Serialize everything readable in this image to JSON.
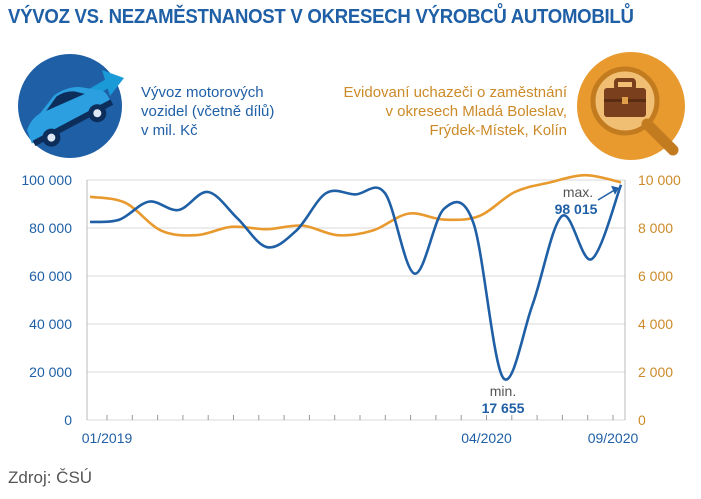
{
  "title": "VÝVOZ VS. NEZAMĚSTNANOST V OKRESECH VÝROBCŮ AUTOMOBILŮ",
  "legend": {
    "left_lines": [
      "Vývoz motorových",
      "vozidel (včetně dílů)",
      "v mil. Kč"
    ],
    "right_lines": [
      "Evidovaní uchazeči o zaměstnání",
      "v okresech Mladá Boleslav,",
      "Frýdek-Místek, Kolín"
    ],
    "left_icon": "car-with-arrow-icon",
    "right_icon": "briefcase-magnifier-icon"
  },
  "source": "Zdroj: ČSÚ",
  "colors": {
    "export": "#1f5fa6",
    "unemployed": "#e89a2e",
    "title": "#1f5fa6",
    "right_axis_text": "#cc8a28",
    "grid": "#d9d9d9"
  },
  "chart_data": {
    "type": "line",
    "x_ticks": [
      "01/2019",
      "04/2020",
      "09/2020"
    ],
    "y_left": {
      "ticks": [
        "100 000",
        "80 000",
        "60 000",
        "40 000",
        "20 000",
        "0"
      ],
      "range": [
        0,
        100000
      ]
    },
    "y_right": {
      "ticks": [
        "10 000",
        "8 000",
        "6 000",
        "4 000",
        "2 000",
        "0"
      ],
      "range": [
        0,
        10000
      ]
    },
    "series": [
      {
        "name": "Vývoz motorových vozidel (včetně dílů) v mil. Kč",
        "axis": "left",
        "values": [
          82500,
          83500,
          91000,
          87500,
          95000,
          84000,
          72000,
          79000,
          94500,
          94000,
          94500,
          61000,
          88000,
          82000,
          17655,
          48000,
          85000,
          67000,
          98015
        ]
      },
      {
        "name": "Evidovaní uchazeči o zaměstnání v okresech Mladá Boleslav, Frýdek-Místek, Kolín",
        "axis": "right",
        "values": [
          9300,
          9050,
          7900,
          7700,
          8050,
          7950,
          8100,
          7700,
          7900,
          8600,
          8350,
          8500,
          9500,
          9900,
          10200,
          9900
        ]
      }
    ],
    "annotations": {
      "min_label": "min.",
      "min_value": "17 655",
      "max_label": "max.",
      "max_value": "98 015"
    }
  }
}
